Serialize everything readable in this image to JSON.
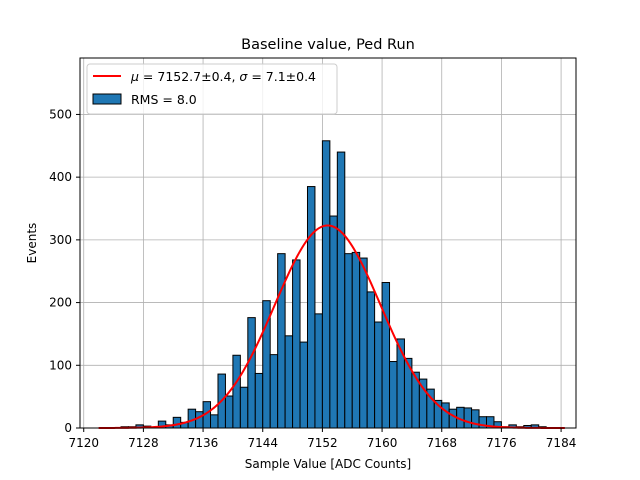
{
  "chart_data": {
    "type": "bar",
    "title": "Baseline value, Ped Run",
    "xlabel": "Sample Value [ADC Counts]",
    "ylabel": "Events",
    "xlim": [
      7119.5,
      7186
    ],
    "ylim": [
      0,
      590
    ],
    "grid": true,
    "legend_position": "top-left",
    "xticks": [
      7120,
      7128,
      7136,
      7144,
      7152,
      7160,
      7168,
      7176,
      7184
    ],
    "yticks": [
      0,
      100,
      200,
      300,
      400,
      500
    ],
    "bin_width": 1,
    "bar_color": "#1f77b4",
    "fit_color": "#ff0000",
    "histogram": {
      "name": "RMS = 8.0",
      "bin_starts": [
        7122,
        7123,
        7124,
        7125,
        7126,
        7127,
        7128,
        7129,
        7130,
        7131,
        7132,
        7133,
        7134,
        7135,
        7136,
        7137,
        7138,
        7139,
        7140,
        7141,
        7142,
        7143,
        7144,
        7145,
        7146,
        7147,
        7148,
        7149,
        7150,
        7151,
        7152,
        7153,
        7154,
        7155,
        7156,
        7157,
        7158,
        7159,
        7160,
        7161,
        7162,
        7163,
        7164,
        7165,
        7166,
        7167,
        7168,
        7169,
        7170,
        7171,
        7172,
        7173,
        7174,
        7175,
        7176,
        7177,
        7178,
        7179,
        7180,
        7181,
        7182,
        7183,
        7184
      ],
      "counts": [
        0,
        0,
        0,
        2,
        2,
        5,
        3,
        1,
        11,
        5,
        17,
        9,
        30,
        26,
        42,
        21,
        86,
        51,
        116,
        65,
        176,
        87,
        203,
        117,
        278,
        147,
        268,
        137,
        385,
        182,
        458,
        338,
        440,
        278,
        280,
        271,
        217,
        169,
        232,
        106,
        142,
        111,
        89,
        78,
        62,
        44,
        40,
        30,
        33,
        32,
        29,
        18,
        18,
        10,
        2,
        5,
        2,
        4,
        5,
        2,
        0,
        0,
        0
      ]
    },
    "fit": {
      "name": "$\\mu = 7152.7 \\pm 0.4$, $\\sigma = 7.1 \\pm 0.4$",
      "legend_label_parts": [
        "μ",
        " = 7152.7±0.4, ",
        "σ",
        " = 7.1±0.4"
      ],
      "mu": 7152.7,
      "sigma": 7.1,
      "amplitude": 323,
      "x_range": [
        7122,
        7184.5
      ]
    }
  }
}
